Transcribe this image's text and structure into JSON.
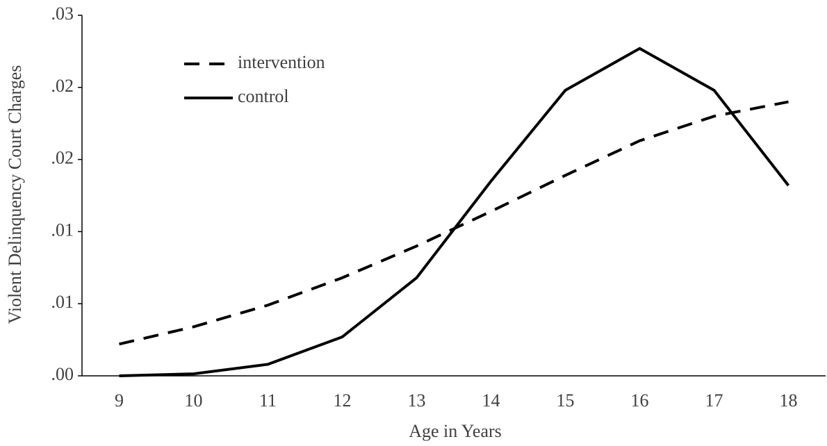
{
  "chart_data": {
    "type": "line",
    "xlabel": "Age in Years",
    "ylabel": "Violent Delinquency Court Charges",
    "x": [
      9,
      10,
      11,
      12,
      13,
      14,
      15,
      16,
      17,
      18
    ],
    "series": [
      {
        "name": "intervention",
        "color": "#000000",
        "dash": true,
        "values": [
          0.0022,
          0.0034,
          0.0049,
          0.0068,
          0.009,
          0.0114,
          0.0139,
          0.0163,
          0.018,
          0.019
        ]
      },
      {
        "name": "control",
        "color": "#000000",
        "dash": false,
        "values": [
          0,
          0.00014,
          0.0008,
          0.0027,
          0.0068,
          0.0135,
          0.0198,
          0.0227,
          0.0198,
          0.0132
        ]
      }
    ],
    "ylim": [
      0,
      0.025
    ],
    "yticks": [
      {
        "value": 0,
        "label": ".00"
      },
      {
        "value": 0.005,
        "label": ".01"
      },
      {
        "value": 0.01,
        "label": ".01"
      },
      {
        "value": 0.015,
        "label": ".02"
      },
      {
        "value": 0.02,
        "label": ".02"
      },
      {
        "value": 0.025,
        "label": ".03"
      }
    ],
    "legend": "upper-left"
  }
}
